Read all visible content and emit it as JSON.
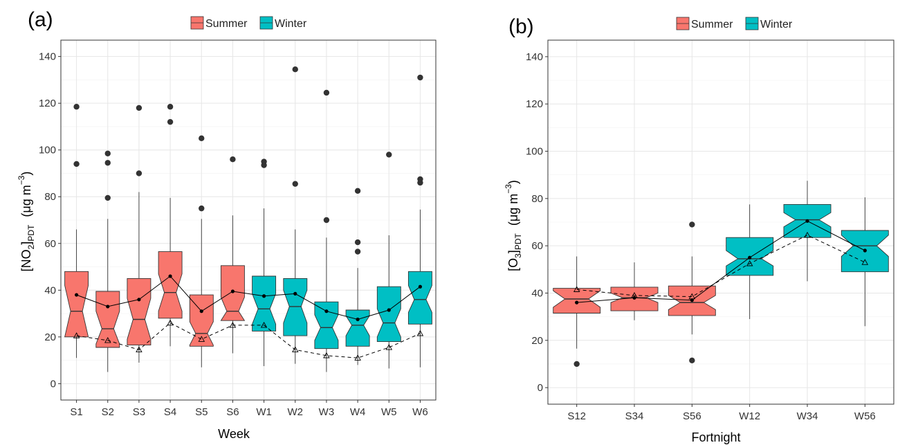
{
  "panels": [
    {
      "tag": "(a)",
      "legend": [
        {
          "label": "Summer",
          "color": "#F8766D"
        },
        {
          "label": "Winter",
          "color": "#00BFC4"
        }
      ]
    },
    {
      "tag": "(b)",
      "legend": [
        {
          "label": "Summer",
          "color": "#F8766D"
        },
        {
          "label": "Winter",
          "color": "#00BFC4"
        }
      ]
    }
  ],
  "chart_data": [
    {
      "type": "boxplot",
      "notched": true,
      "xlabel": "Week",
      "ylabel_main": "[NO",
      "ylabel_sub1": "2",
      "ylabel_close": "]",
      "ylabel_sub2": "PDT",
      "ylabel_unit": "(μg m",
      "ylabel_sup": "−3",
      "ylabel_end": ")",
      "ylim": [
        -7,
        147
      ],
      "yticks": [
        0,
        20,
        40,
        60,
        80,
        100,
        120,
        140
      ],
      "grid": true,
      "legend_position": "top",
      "categories": [
        "S1",
        "S2",
        "S3",
        "S4",
        "S5",
        "S6",
        "W1",
        "W2",
        "W3",
        "W4",
        "W5",
        "W6"
      ],
      "season": [
        "Summer",
        "Summer",
        "Summer",
        "Summer",
        "Summer",
        "Summer",
        "Winter",
        "Winter",
        "Winter",
        "Winter",
        "Winter",
        "Winter"
      ],
      "stats": [
        {
          "whisker_low": 11,
          "q1": 20,
          "median": 31,
          "q3": 48,
          "whisker_high": 66,
          "notch_low": 20,
          "notch_high": 42,
          "outliers": [
            94,
            118.5
          ]
        },
        {
          "whisker_low": 5,
          "q1": 15.5,
          "median": 23.5,
          "q3": 39.5,
          "whisker_high": 70.5,
          "notch_low": 17,
          "notch_high": 31,
          "outliers": [
            79.5,
            94.5,
            98.5
          ]
        },
        {
          "whisker_low": 9,
          "q1": 16.5,
          "median": 27.5,
          "q3": 45,
          "whisker_high": 82,
          "notch_low": 19,
          "notch_high": 36.5,
          "outliers": [
            90,
            118
          ]
        },
        {
          "whisker_low": 16,
          "q1": 28,
          "median": 39,
          "q3": 56.5,
          "whisker_high": 79.5,
          "notch_low": 31,
          "notch_high": 47,
          "outliers": [
            112,
            118.5
          ]
        },
        {
          "whisker_low": 7,
          "q1": 16,
          "median": 21.5,
          "q3": 38,
          "whisker_high": 70.5,
          "notch_low": 16.5,
          "notch_high": 26.5,
          "outliers": [
            75,
            105
          ]
        },
        {
          "whisker_low": 13,
          "q1": 27,
          "median": 31,
          "q3": 50.5,
          "whisker_high": 72,
          "notch_low": 27,
          "notch_high": 37,
          "outliers": [
            96
          ]
        },
        {
          "whisker_low": 7.5,
          "q1": 22.5,
          "median": 32,
          "q3": 46,
          "whisker_high": 75,
          "notch_low": 25.5,
          "notch_high": 38.5,
          "outliers": [
            93.5,
            95
          ]
        },
        {
          "whisker_low": 8.5,
          "q1": 20.5,
          "median": 33,
          "q3": 45,
          "whisker_high": 66,
          "notch_low": 26,
          "notch_high": 40,
          "outliers": [
            85.5,
            134.5
          ]
        },
        {
          "whisker_low": 5,
          "q1": 15,
          "median": 24,
          "q3": 35,
          "whisker_high": 62.5,
          "notch_low": 18.5,
          "notch_high": 29.5,
          "outliers": [
            70,
            124.5
          ]
        },
        {
          "whisker_low": 8,
          "q1": 16,
          "median": 25,
          "q3": 31.5,
          "whisker_high": 49.5,
          "notch_low": 20.5,
          "notch_high": 29,
          "outliers": [
            56.5,
            60.5,
            82.5
          ]
        },
        {
          "whisker_low": 6.5,
          "q1": 18,
          "median": 26,
          "q3": 41.5,
          "whisker_high": 63.5,
          "notch_low": 20,
          "notch_high": 32,
          "outliers": [
            98
          ]
        },
        {
          "whisker_low": 7,
          "q1": 25.5,
          "median": 36,
          "q3": 48,
          "whisker_high": 74.5,
          "notch_low": 30.5,
          "notch_high": 42,
          "outliers": [
            86,
            87.5,
            131
          ]
        }
      ],
      "mean_series": [
        38,
        33,
        36,
        46,
        31,
        39.5,
        37.5,
        38.5,
        31,
        27.5,
        31.5,
        41.5
      ],
      "triangle_series": [
        20.5,
        18.5,
        14.5,
        26,
        19,
        25,
        25,
        14.5,
        12,
        11,
        15.5,
        21.5
      ]
    },
    {
      "type": "boxplot",
      "notched": true,
      "xlabel": "Fortnight",
      "ylabel_main": "[O",
      "ylabel_sub1": "3",
      "ylabel_close": "]",
      "ylabel_sub2": "PDT",
      "ylabel_unit": "(μg m",
      "ylabel_sup": "−3",
      "ylabel_end": ")",
      "ylim": [
        -7,
        147
      ],
      "yticks": [
        0,
        20,
        40,
        60,
        80,
        100,
        120,
        140
      ],
      "grid": true,
      "legend_position": "top",
      "categories": [
        "S12",
        "S34",
        "S56",
        "W12",
        "W34",
        "W56"
      ],
      "season": [
        "Summer",
        "Summer",
        "Summer",
        "Winter",
        "Winter",
        "Winter"
      ],
      "stats": [
        {
          "whisker_low": 16.5,
          "q1": 31.5,
          "median": 37.5,
          "q3": 42,
          "whisker_high": 55.5,
          "notch_low": 34,
          "notch_high": 41,
          "outliers": [
            10
          ]
        },
        {
          "whisker_low": 28.5,
          "q1": 32.5,
          "median": 38,
          "q3": 42.5,
          "whisker_high": 53,
          "notch_low": 36,
          "notch_high": 40,
          "outliers": []
        },
        {
          "whisker_low": 22.5,
          "q1": 30.5,
          "median": 36,
          "q3": 43,
          "whisker_high": 55.5,
          "notch_low": 33,
          "notch_high": 39,
          "outliers": [
            11.5,
            69
          ]
        },
        {
          "whisker_low": 29,
          "q1": 47.5,
          "median": 54.5,
          "q3": 63.5,
          "whisker_high": 77.5,
          "notch_low": 51.5,
          "notch_high": 58,
          "outliers": []
        },
        {
          "whisker_low": 45,
          "q1": 63.5,
          "median": 71,
          "q3": 77.5,
          "whisker_high": 87.5,
          "notch_low": 68,
          "notch_high": 74,
          "outliers": []
        },
        {
          "whisker_low": 26,
          "q1": 49,
          "median": 60,
          "q3": 66.5,
          "whisker_high": 80.5,
          "notch_low": 55.5,
          "notch_high": 64.5,
          "outliers": []
        }
      ],
      "mean_series": [
        36,
        38,
        37,
        55,
        70.5,
        58
      ],
      "triangle_series": [
        41.5,
        39,
        38.5,
        52.5,
        64.5,
        53
      ]
    }
  ]
}
